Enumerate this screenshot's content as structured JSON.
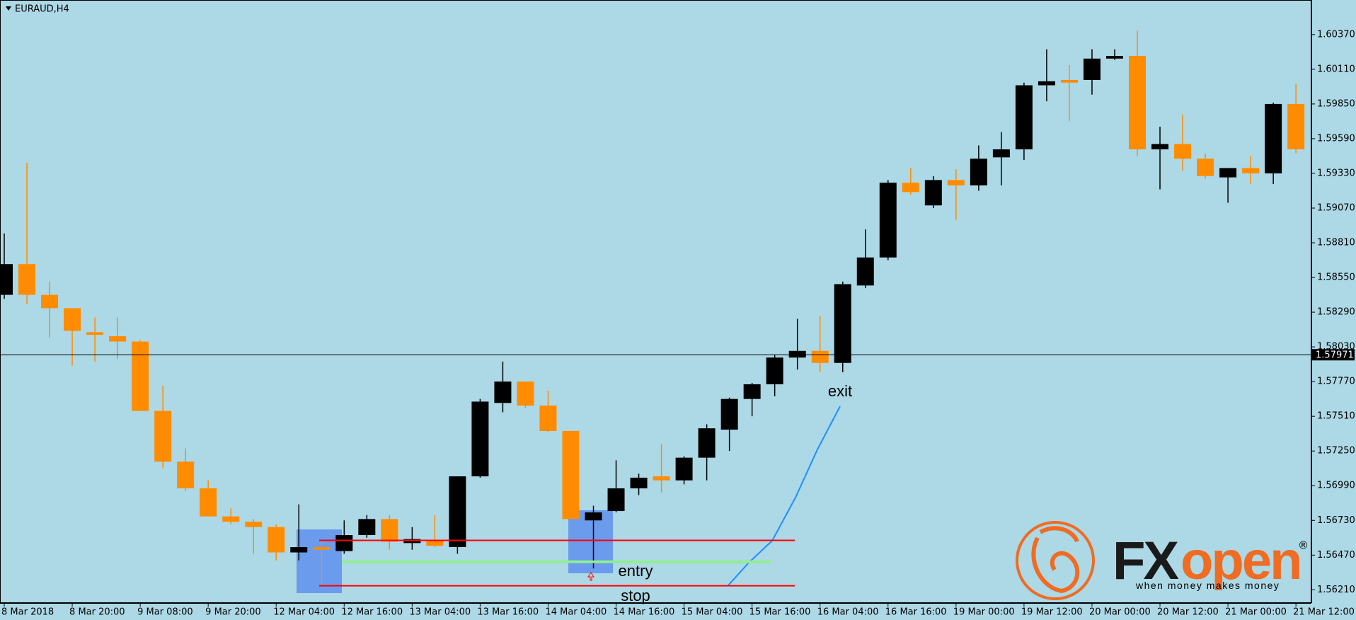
{
  "chart_data": {
    "type": "candlestick",
    "title": "EURAUD,H4",
    "categories": [
      "8 Mar 2018",
      null,
      null,
      "8 Mar 20:00",
      null,
      null,
      "9 Mar 08:00",
      null,
      null,
      "9 Mar 20:00",
      null,
      null,
      "12 Mar 04:00",
      null,
      null,
      "12 Mar 16:00",
      null,
      null,
      "13 Mar 04:00",
      null,
      null,
      "13 Mar 16:00",
      null,
      null,
      "14 Mar 04:00",
      null,
      null,
      "14 Mar 16:00",
      null,
      null,
      "15 Mar 04:00",
      null,
      null,
      "15 Mar 16:00",
      null,
      null,
      "16 Mar 04:00",
      null,
      null,
      "16 Mar 16:00",
      null,
      null,
      "19 Mar 00:00",
      null,
      null,
      "19 Mar 12:00",
      null,
      null,
      "20 Mar 00:00",
      null,
      null,
      "20 Mar 12:00",
      null,
      null,
      "21 Mar 00:00",
      null,
      null,
      "21 Mar 12:00"
    ],
    "open": [
      1.5842,
      1.5865,
      1.5842,
      1.5832,
      1.5814,
      1.5811,
      1.5807,
      1.5755,
      1.5717,
      1.5697,
      1.5676,
      1.5672,
      1.5668,
      1.5649,
      1.5653,
      1.565,
      1.5662,
      1.5674,
      1.5656,
      1.5658,
      1.5653,
      1.5706,
      1.5761,
      1.5777,
      1.5759,
      1.574,
      1.5673,
      1.568,
      1.5697,
      1.5706,
      1.5703,
      1.572,
      1.5741,
      1.5764,
      1.5775,
      1.5795,
      1.58,
      1.5791,
      1.5849,
      1.587,
      1.5926,
      1.5909,
      1.5928,
      1.5924,
      1.5945,
      1.5951,
      1.5999,
      1.6003,
      1.6003,
      1.6019,
      1.6021,
      1.5951,
      1.5955,
      1.5944,
      1.593,
      1.5937,
      1.5933,
      1.5985
    ],
    "high": [
      1.5888,
      1.5941,
      1.5852,
      1.5832,
      1.5825,
      1.5825,
      1.5808,
      1.5774,
      1.5727,
      1.5703,
      1.5682,
      1.5674,
      1.567,
      1.5685,
      1.5658,
      1.5673,
      1.5677,
      1.5677,
      1.5668,
      1.5677,
      1.5706,
      1.5764,
      1.5792,
      1.5777,
      1.577,
      1.574,
      1.5684,
      1.5718,
      1.5708,
      1.573,
      1.5721,
      1.5745,
      1.5765,
      1.5776,
      1.5797,
      1.5824,
      1.5826,
      1.5852,
      1.5891,
      1.5928,
      1.5937,
      1.5931,
      1.5936,
      1.5954,
      1.5964,
      1.6001,
      1.6026,
      1.6014,
      1.6026,
      1.6026,
      1.604,
      1.5968,
      1.5977,
      1.5948,
      1.5937,
      1.5946,
      1.5986,
      1.6
    ],
    "low": [
      1.5839,
      1.5835,
      1.581,
      1.5789,
      1.5792,
      1.5794,
      1.5755,
      1.5712,
      1.5695,
      1.5676,
      1.567,
      1.5648,
      1.5643,
      1.5643,
      1.5624,
      1.5648,
      1.566,
      1.5651,
      1.5651,
      1.5653,
      1.5648,
      1.5705,
      1.5754,
      1.5757,
      1.5739,
      1.5674,
      1.5637,
      1.5679,
      1.5692,
      1.5694,
      1.57,
      1.5703,
      1.5725,
      1.5751,
      1.5766,
      1.5786,
      1.5784,
      1.5784,
      1.5847,
      1.5868,
      1.5917,
      1.5907,
      1.5898,
      1.592,
      1.5924,
      1.5943,
      1.5987,
      1.5972,
      1.5992,
      1.6018,
      1.5946,
      1.5921,
      1.5935,
      1.5929,
      1.5911,
      1.5925,
      1.5925,
      1.5948
    ],
    "close": [
      1.5865,
      1.5842,
      1.5832,
      1.5815,
      1.5812,
      1.5807,
      1.5755,
      1.5717,
      1.5697,
      1.5676,
      1.5672,
      1.5668,
      1.5649,
      1.5653,
      1.5651,
      1.5662,
      1.5674,
      1.5657,
      1.5659,
      1.5654,
      1.5706,
      1.5762,
      1.5777,
      1.5759,
      1.574,
      1.5674,
      1.5679,
      1.5697,
      1.5705,
      1.5703,
      1.572,
      1.5742,
      1.5764,
      1.5775,
      1.5795,
      1.58,
      1.5791,
      1.585,
      1.587,
      1.5926,
      1.5919,
      1.5928,
      1.5924,
      1.5944,
      1.5951,
      1.5999,
      1.6002,
      1.6001,
      1.6019,
      1.6021,
      1.5951,
      1.5955,
      1.5944,
      1.5931,
      1.5937,
      1.5933,
      1.5985,
      1.5951
    ],
    "up_color": "#000000",
    "down_color": "#ff8c00",
    "ylim": [
      1.56111,
      1.60629
    ],
    "yticks": [
      {
        "value": 1.6037,
        "label": "1.60370"
      },
      {
        "value": 1.6011,
        "label": "1.60110"
      },
      {
        "value": 1.5985,
        "label": "1.59850"
      },
      {
        "value": 1.5959,
        "label": "1.59590"
      },
      {
        "value": 1.5933,
        "label": "1.59330"
      },
      {
        "value": 1.5907,
        "label": "1.59070"
      },
      {
        "value": 1.5881,
        "label": "1.58810"
      },
      {
        "value": 1.5855,
        "label": "1.58550"
      },
      {
        "value": 1.5829,
        "label": "1.58290"
      },
      {
        "value": 1.5803,
        "label": "1.58030"
      },
      {
        "value": 1.5777,
        "label": "1.57770"
      },
      {
        "value": 1.5751,
        "label": "1.57510"
      },
      {
        "value": 1.5725,
        "label": "1.57250"
      },
      {
        "value": 1.5699,
        "label": "1.56990"
      },
      {
        "value": 1.5673,
        "label": "1.56730"
      },
      {
        "value": 1.5647,
        "label": "1.56470"
      },
      {
        "value": 1.5621,
        "label": "1.56210"
      }
    ],
    "grid": false,
    "current_price": {
      "value": 1.57971,
      "label": "1.57971"
    },
    "levels": [
      {
        "value": 1.5658,
        "color": "#ff0000"
      },
      {
        "value": 1.5624,
        "color": "#ff0000"
      },
      {
        "value": 1.5642,
        "color": "#90ee90"
      }
    ],
    "annotations": [
      "entry",
      "stop",
      "exit"
    ],
    "logo": {
      "dark": "FX",
      "light": "open",
      "mark": "®",
      "tagline": "when money makes money"
    }
  }
}
